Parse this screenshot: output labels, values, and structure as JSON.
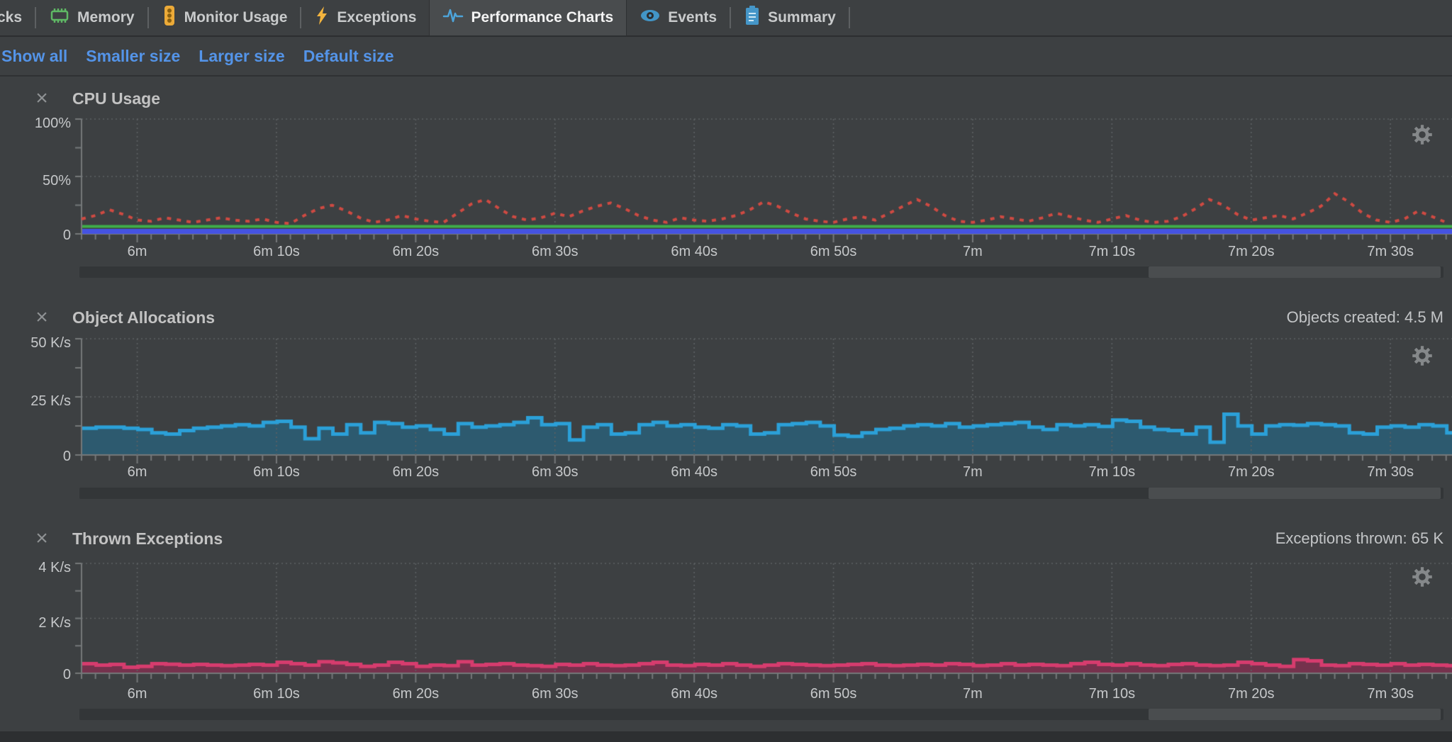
{
  "tabbar": {
    "tabs": [
      {
        "label": "cks",
        "icon": null,
        "selected": false
      },
      {
        "label": "Memory",
        "icon": "memory-chip-icon",
        "selected": false
      },
      {
        "label": "Monitor Usage",
        "icon": "traffic-light-icon",
        "selected": false
      },
      {
        "label": "Exceptions",
        "icon": "lightning-icon",
        "selected": false
      },
      {
        "label": "Performance Charts",
        "icon": "pulse-icon",
        "selected": true
      },
      {
        "label": "Events",
        "icon": "eye-icon",
        "selected": false
      },
      {
        "label": "Summary",
        "icon": "clipboard-icon",
        "selected": false
      }
    ]
  },
  "toolbar": {
    "links": [
      "Show all",
      "Smaller size",
      "Larger size",
      "Default size"
    ]
  },
  "panels": [
    {
      "title": "CPU Usage",
      "info": ""
    },
    {
      "title": "Object Allocations",
      "info": "Objects created: 4.5 M"
    },
    {
      "title": "Thrown Exceptions",
      "info": "Exceptions thrown: 65 K"
    }
  ],
  "colors": {
    "background": "#3d4042",
    "link_blue": "#5494e8",
    "grid": "#5e6264",
    "axis": "#75787a",
    "cpu_red": "#cf4a42",
    "cpu_green": "#3fae49",
    "cpu_blue": "#4553e2",
    "alloc_edge": "#2ba0d8",
    "alloc_fill": "#2d5a6f",
    "exc_edge": "#d63c6e",
    "exc_fill": "#75324d"
  },
  "chart_data": [
    {
      "type": "line",
      "title": "CPU Usage",
      "x_start_seconds": 356,
      "x_step_seconds": 1,
      "x_ticks": [
        {
          "seconds": 360,
          "label": "6m"
        },
        {
          "seconds": 370,
          "label": "6m 10s"
        },
        {
          "seconds": 380,
          "label": "6m 20s"
        },
        {
          "seconds": 390,
          "label": "6m 30s"
        },
        {
          "seconds": 400,
          "label": "6m 40s"
        },
        {
          "seconds": 410,
          "label": "6m 50s"
        },
        {
          "seconds": 420,
          "label": "7m"
        },
        {
          "seconds": 430,
          "label": "7m 10s"
        },
        {
          "seconds": 440,
          "label": "7m 20s"
        },
        {
          "seconds": 450,
          "label": "7m 30s"
        }
      ],
      "ylim": [
        0,
        100
      ],
      "y_ticks": [
        {
          "value": 100,
          "label": "100%"
        },
        {
          "value": 50,
          "label": "50%"
        },
        {
          "value": 0,
          "label": "0"
        }
      ],
      "series": [
        {
          "name": "series-red-dotted",
          "color": "#cf4a42",
          "dash": true,
          "width": 4,
          "values": [
            13,
            16,
            21,
            17,
            12,
            11,
            14,
            12,
            10,
            12,
            14,
            12,
            11,
            13,
            10,
            9,
            16,
            22,
            25,
            20,
            14,
            10,
            12,
            16,
            13,
            11,
            10,
            18,
            26,
            30,
            22,
            15,
            12,
            14,
            18,
            15,
            20,
            24,
            27,
            22,
            16,
            12,
            10,
            14,
            12,
            11,
            13,
            16,
            21,
            28,
            24,
            18,
            13,
            11,
            10,
            13,
            15,
            12,
            18,
            24,
            30,
            24,
            16,
            11,
            10,
            12,
            15,
            13,
            11,
            14,
            18,
            15,
            12,
            10,
            13,
            16,
            12,
            10,
            11,
            15,
            22,
            30,
            25,
            17,
            12,
            14,
            16,
            13,
            18,
            24,
            35,
            28,
            18,
            12,
            10,
            13,
            20,
            15,
            10
          ]
        },
        {
          "name": "series-green-solid",
          "color": "#3fae49",
          "dash": false,
          "width": 4,
          "constant": 6.5
        },
        {
          "name": "series-blue-solid",
          "color": "#4553e2",
          "dash": false,
          "width": 7,
          "constant": 2.2
        }
      ]
    },
    {
      "type": "step-area",
      "title": "Object Allocations",
      "info": "Objects created: 4.5 M",
      "x_start_seconds": 356,
      "x_step_seconds": 1,
      "x_ticks": [
        {
          "seconds": 360,
          "label": "6m"
        },
        {
          "seconds": 370,
          "label": "6m 10s"
        },
        {
          "seconds": 380,
          "label": "6m 20s"
        },
        {
          "seconds": 390,
          "label": "6m 30s"
        },
        {
          "seconds": 400,
          "label": "6m 40s"
        },
        {
          "seconds": 410,
          "label": "6m 50s"
        },
        {
          "seconds": 420,
          "label": "7m"
        },
        {
          "seconds": 430,
          "label": "7m 10s"
        },
        {
          "seconds": 440,
          "label": "7m 20s"
        },
        {
          "seconds": 450,
          "label": "7m 30s"
        }
      ],
      "ylim": [
        0,
        50
      ],
      "y_ticks": [
        {
          "value": 50,
          "label": "50 K/s"
        },
        {
          "value": 25,
          "label": "25 K/s"
        },
        {
          "value": 0,
          "label": "0"
        }
      ],
      "edge_color": "#2ba0d8",
      "fill_color": "#2d5a6f",
      "values": [
        11.5,
        12,
        12,
        11.5,
        11,
        9.5,
        9,
        10.5,
        11.5,
        12,
        12.5,
        13,
        12.5,
        14,
        14.5,
        12,
        7,
        11.5,
        9,
        13,
        9.5,
        14,
        13.5,
        12,
        12.5,
        11,
        9,
        13.5,
        12,
        12.5,
        13,
        14,
        16,
        13,
        13.5,
        6.5,
        12,
        13,
        9,
        9.5,
        13,
        14,
        12.5,
        13,
        12,
        11.5,
        13,
        12.5,
        9,
        9.5,
        13,
        13.5,
        14,
        12.5,
        8.5,
        8,
        9.5,
        11,
        11.5,
        12.5,
        13,
        12.5,
        13.5,
        12,
        12.5,
        13,
        13.5,
        14,
        12,
        11,
        13,
        12.5,
        13,
        12.3,
        15,
        14.5,
        12,
        11,
        10.5,
        9,
        12,
        5.5,
        17.5,
        12.5,
        9,
        12.5,
        13,
        12.8,
        13.5,
        13,
        12.5,
        9.5,
        9,
        12,
        12.5,
        12,
        13,
        12.5,
        9.5
      ]
    },
    {
      "type": "step-area",
      "title": "Thrown Exceptions",
      "info": "Exceptions thrown: 65 K",
      "x_start_seconds": 356,
      "x_step_seconds": 1,
      "x_ticks": [
        {
          "seconds": 360,
          "label": "6m"
        },
        {
          "seconds": 370,
          "label": "6m 10s"
        },
        {
          "seconds": 380,
          "label": "6m 20s"
        },
        {
          "seconds": 390,
          "label": "6m 30s"
        },
        {
          "seconds": 400,
          "label": "6m 40s"
        },
        {
          "seconds": 410,
          "label": "6m 50s"
        },
        {
          "seconds": 420,
          "label": "7m"
        },
        {
          "seconds": 430,
          "label": "7m 10s"
        },
        {
          "seconds": 440,
          "label": "7m 20s"
        },
        {
          "seconds": 450,
          "label": "7m 30s"
        }
      ],
      "ylim": [
        0,
        4
      ],
      "y_ticks": [
        {
          "value": 4,
          "label": "4 K/s"
        },
        {
          "value": 2,
          "label": "2 K/s"
        },
        {
          "value": 0,
          "label": "0"
        }
      ],
      "edge_color": "#d63c6e",
      "fill_color": "#75324d",
      "values": [
        0.35,
        0.3,
        0.32,
        0.22,
        0.25,
        0.35,
        0.33,
        0.3,
        0.32,
        0.3,
        0.28,
        0.3,
        0.32,
        0.3,
        0.4,
        0.35,
        0.3,
        0.42,
        0.38,
        0.32,
        0.25,
        0.3,
        0.4,
        0.35,
        0.25,
        0.3,
        0.28,
        0.42,
        0.3,
        0.32,
        0.35,
        0.3,
        0.28,
        0.25,
        0.32,
        0.3,
        0.35,
        0.3,
        0.28,
        0.3,
        0.35,
        0.4,
        0.3,
        0.28,
        0.32,
        0.3,
        0.35,
        0.3,
        0.25,
        0.3,
        0.35,
        0.32,
        0.3,
        0.28,
        0.3,
        0.32,
        0.35,
        0.3,
        0.28,
        0.3,
        0.32,
        0.3,
        0.35,
        0.32,
        0.28,
        0.3,
        0.35,
        0.3,
        0.32,
        0.3,
        0.28,
        0.35,
        0.4,
        0.32,
        0.3,
        0.35,
        0.3,
        0.28,
        0.32,
        0.35,
        0.3,
        0.28,
        0.3,
        0.4,
        0.35,
        0.3,
        0.25,
        0.5,
        0.45,
        0.3,
        0.28,
        0.35,
        0.32,
        0.3,
        0.35,
        0.3,
        0.32,
        0.3,
        0.28
      ]
    }
  ]
}
